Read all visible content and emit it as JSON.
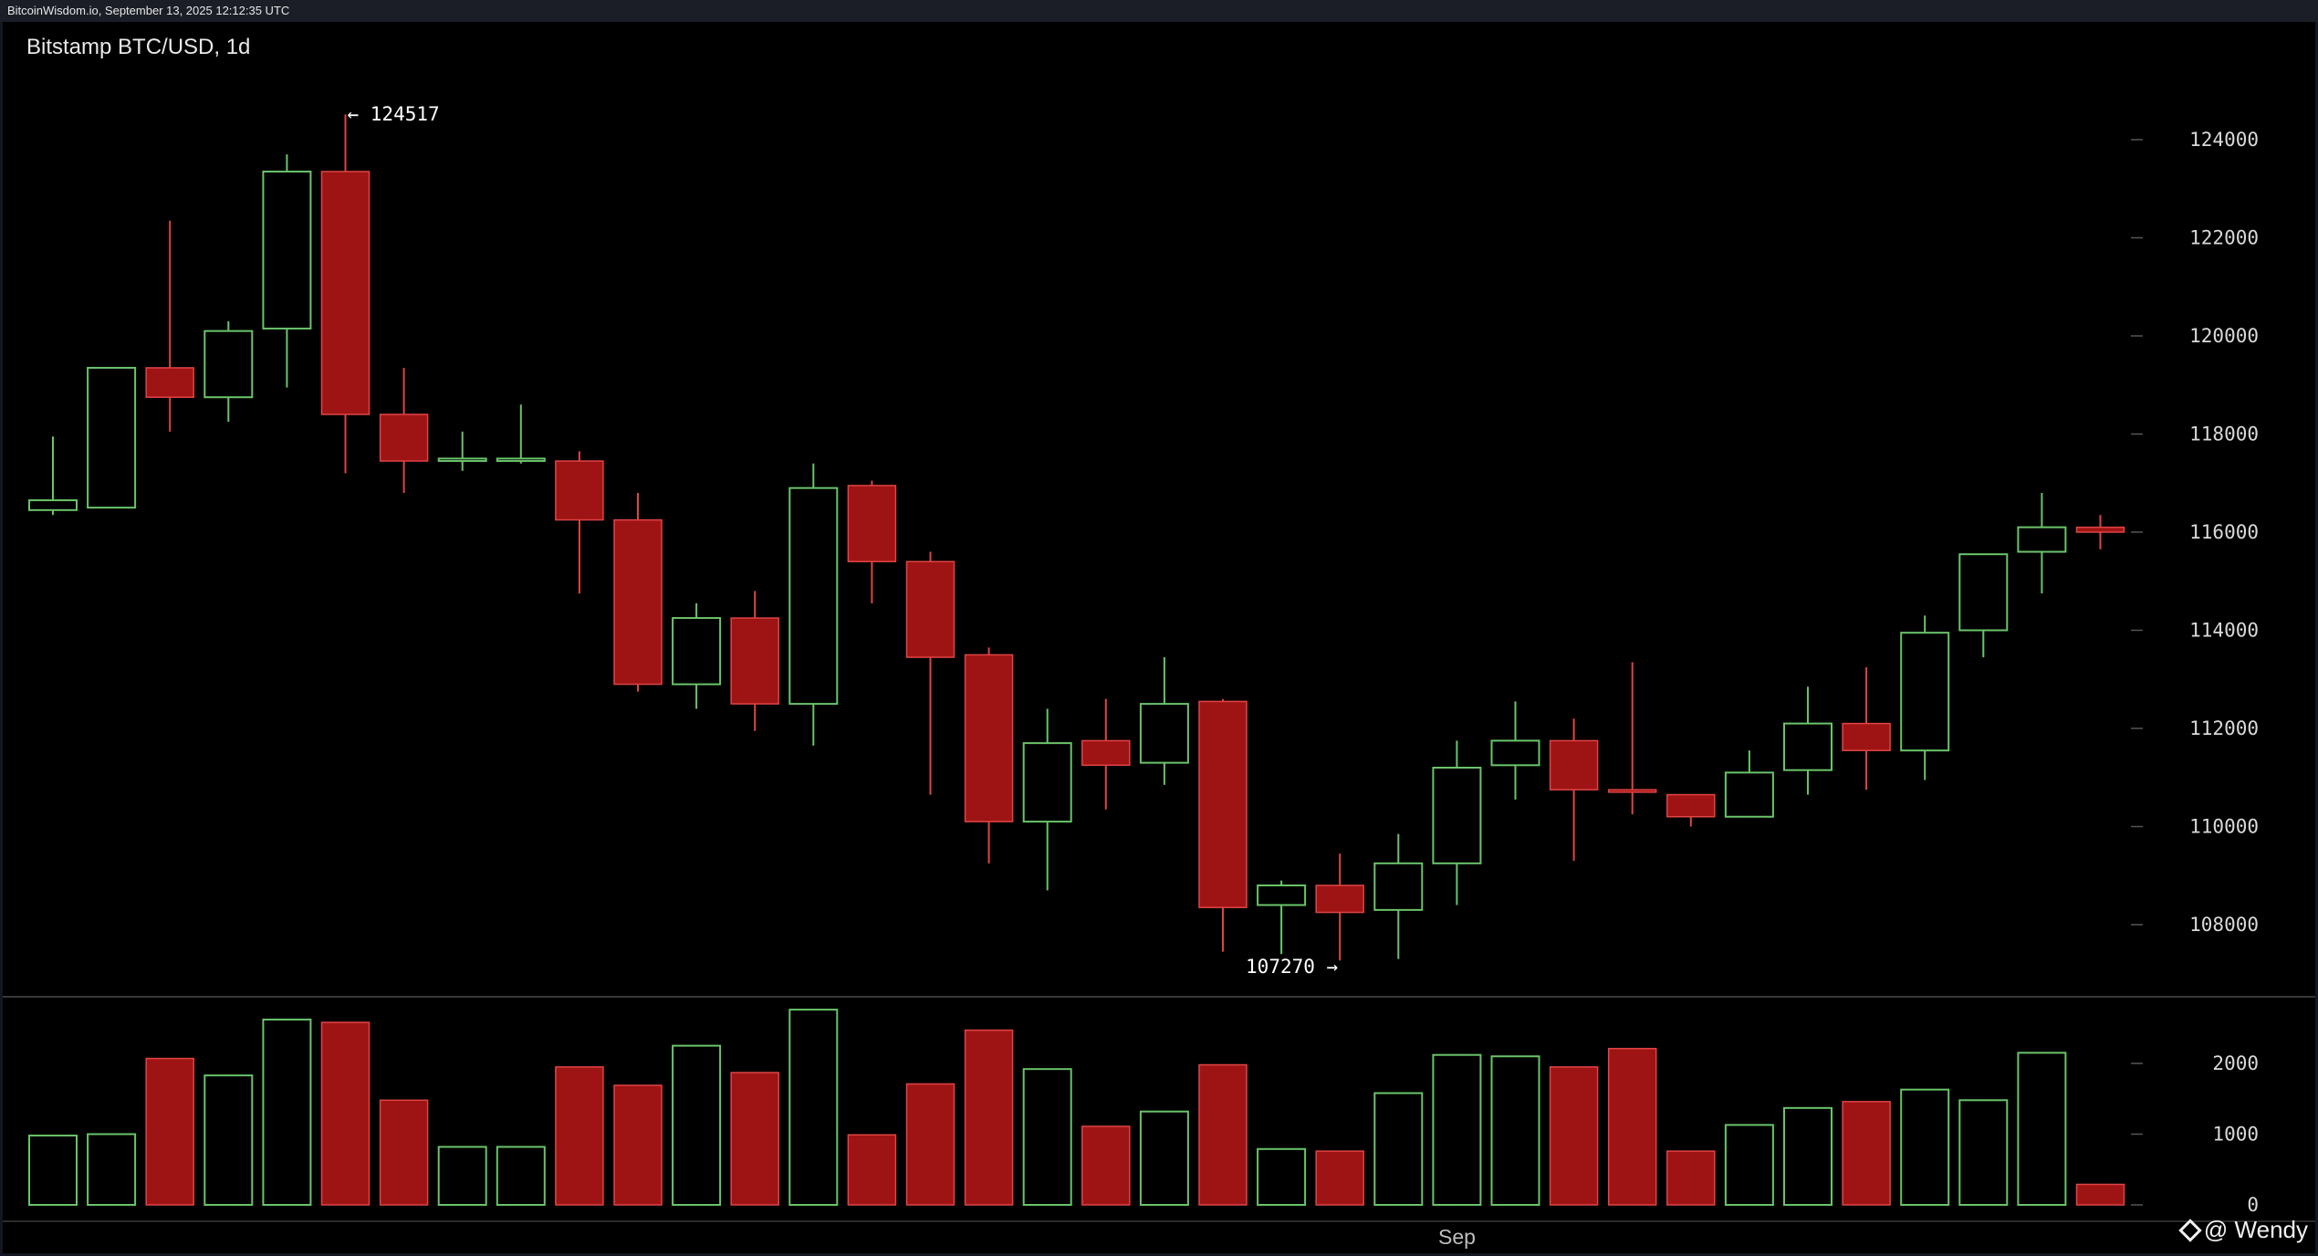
{
  "header": {
    "caption": "BitcoinWisdom.io, September 13, 2025 12:12:35 UTC"
  },
  "watermark": {
    "text": "@ Wendy",
    "icon": "binance-square-icon"
  },
  "colors": {
    "bull": "#6ac46a",
    "bear_fill": "#9e1414",
    "bear_wick": "#e04444",
    "grid_tick": "#555555",
    "divider": "#4a4a4a"
  },
  "chart_data": {
    "type": "candlestick",
    "title": "Bitstamp BTC/USD, 1d",
    "price_axis": {
      "ticks": [
        124000,
        122000,
        120000,
        118000,
        116000,
        114000,
        112000,
        110000,
        108000
      ],
      "range": [
        105000,
        126100
      ]
    },
    "volume_axis": {
      "ticks": [
        2000,
        1000,
        0
      ],
      "range": [
        0,
        3000
      ]
    },
    "x_label": "Sep",
    "annotations": [
      {
        "text": "← 124517",
        "candle": 5,
        "value": 124517
      },
      {
        "text": "107270 →",
        "candle": 22,
        "value": 107270
      }
    ],
    "candles": [
      {
        "o": 116450,
        "h": 117950,
        "l": 116350,
        "c": 116650,
        "v": 980
      },
      {
        "o": 116500,
        "h": 119350,
        "l": 116500,
        "c": 119350,
        "v": 1000
      },
      {
        "o": 119350,
        "h": 122350,
        "l": 118050,
        "c": 118750,
        "v": 2070
      },
      {
        "o": 118750,
        "h": 120300,
        "l": 118250,
        "c": 120100,
        "v": 1830
      },
      {
        "o": 120150,
        "h": 123700,
        "l": 118950,
        "c": 123350,
        "v": 2620
      },
      {
        "o": 123350,
        "h": 124517,
        "l": 117200,
        "c": 118400,
        "v": 2580
      },
      {
        "o": 118400,
        "h": 119350,
        "l": 116800,
        "c": 117450,
        "v": 1480
      },
      {
        "o": 117450,
        "h": 118050,
        "l": 117250,
        "c": 117500,
        "v": 820
      },
      {
        "o": 117450,
        "h": 118600,
        "l": 117400,
        "c": 117500,
        "v": 820
      },
      {
        "o": 117450,
        "h": 117650,
        "l": 114750,
        "c": 116250,
        "v": 1950
      },
      {
        "o": 116250,
        "h": 116800,
        "l": 112750,
        "c": 112900,
        "v": 1690
      },
      {
        "o": 112900,
        "h": 114550,
        "l": 112400,
        "c": 114250,
        "v": 2250
      },
      {
        "o": 114250,
        "h": 114800,
        "l": 111950,
        "c": 112500,
        "v": 1870
      },
      {
        "o": 112500,
        "h": 117400,
        "l": 111650,
        "c": 116900,
        "v": 2760
      },
      {
        "o": 116950,
        "h": 117050,
        "l": 114550,
        "c": 115400,
        "v": 990
      },
      {
        "o": 115400,
        "h": 115600,
        "l": 110650,
        "c": 113450,
        "v": 1710
      },
      {
        "o": 113500,
        "h": 113650,
        "l": 109250,
        "c": 110100,
        "v": 2470
      },
      {
        "o": 110100,
        "h": 112400,
        "l": 108700,
        "c": 111700,
        "v": 1920
      },
      {
        "o": 111750,
        "h": 112600,
        "l": 110350,
        "c": 111250,
        "v": 1110
      },
      {
        "o": 111300,
        "h": 113450,
        "l": 110850,
        "c": 112500,
        "v": 1320
      },
      {
        "o": 112550,
        "h": 112600,
        "l": 107450,
        "c": 108350,
        "v": 1980
      },
      {
        "o": 108400,
        "h": 108900,
        "l": 107400,
        "c": 108800,
        "v": 790
      },
      {
        "o": 108800,
        "h": 109450,
        "l": 107270,
        "c": 108250,
        "v": 760
      },
      {
        "o": 108300,
        "h": 109850,
        "l": 107300,
        "c": 109250,
        "v": 1580
      },
      {
        "o": 109250,
        "h": 111750,
        "l": 108400,
        "c": 111200,
        "v": 2120
      },
      {
        "o": 111250,
        "h": 112550,
        "l": 110550,
        "c": 111750,
        "v": 2100
      },
      {
        "o": 111750,
        "h": 112200,
        "l": 109300,
        "c": 110750,
        "v": 1950
      },
      {
        "o": 110750,
        "h": 113350,
        "l": 110250,
        "c": 110700,
        "v": 2210
      },
      {
        "o": 110650,
        "h": 110650,
        "l": 110000,
        "c": 110200,
        "v": 760
      },
      {
        "o": 110200,
        "h": 111550,
        "l": 110200,
        "c": 111100,
        "v": 1130
      },
      {
        "o": 111150,
        "h": 112850,
        "l": 110650,
        "c": 112100,
        "v": 1370
      },
      {
        "o": 112100,
        "h": 113250,
        "l": 110750,
        "c": 111550,
        "v": 1460
      },
      {
        "o": 111550,
        "h": 114300,
        "l": 110950,
        "c": 113950,
        "v": 1630
      },
      {
        "o": 114000,
        "h": 115550,
        "l": 113450,
        "c": 115550,
        "v": 1480
      },
      {
        "o": 115600,
        "h": 116800,
        "l": 114750,
        "c": 116100,
        "v": 2150
      },
      {
        "o": 116100,
        "h": 116350,
        "l": 115650,
        "c": 116000,
        "v": 290
      }
    ]
  }
}
